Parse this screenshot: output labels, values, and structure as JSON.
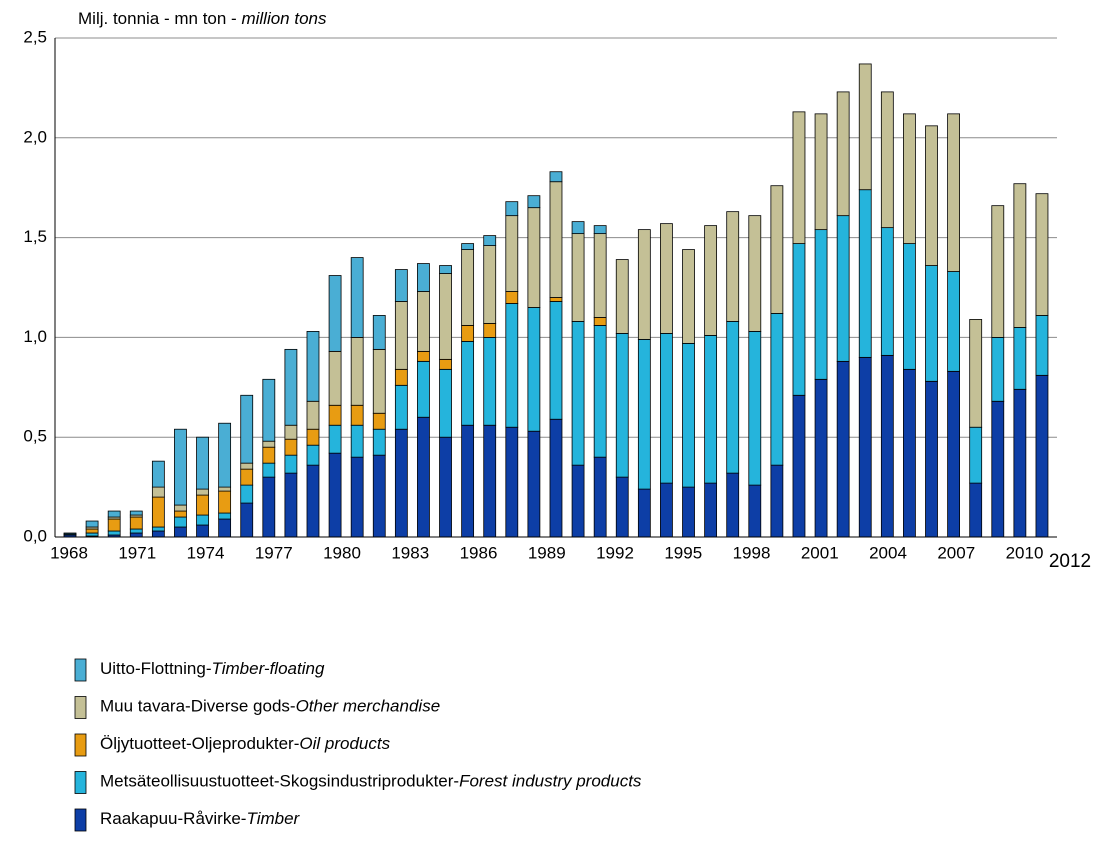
{
  "chart_data": {
    "type": "stacked_bar",
    "title": "Milj. tonnia - mn ton - ",
    "title_italic": "million tons",
    "categories": [
      "1968",
      null,
      null,
      "1971",
      null,
      null,
      "1974",
      null,
      null,
      "1977",
      null,
      null,
      "1980",
      null,
      null,
      "1983",
      null,
      null,
      "1986",
      null,
      null,
      "1989",
      null,
      null,
      "1992",
      null,
      null,
      "1995",
      null,
      null,
      "1998",
      null,
      null,
      "2001",
      null,
      null,
      "2004",
      null,
      null,
      "2007",
      null,
      null,
      "2010",
      null,
      "2012"
    ],
    "ylim": [
      0,
      2.5
    ],
    "yticks": [
      {
        "value": 0,
        "label": "0,0"
      },
      {
        "value": 0.5,
        "label": "0,5"
      },
      {
        "value": 1,
        "label": "1,0"
      },
      {
        "value": 1.5,
        "label": "1,5"
      },
      {
        "value": 2,
        "label": "2,0"
      },
      {
        "value": 2.5,
        "label": "2,5"
      }
    ],
    "grid": true,
    "series": [
      {
        "name": "Raakapuu-Råvirke-",
        "name_italic": "Timber",
        "color": "#0d3ea6",
        "values": [
          0.01,
          0.005,
          0.01,
          0.02,
          0.03,
          0.05,
          0.06,
          0.09,
          0.17,
          0.3,
          0.32,
          0.36,
          0.42,
          0.4,
          0.41,
          0.54,
          0.6,
          0.5,
          0.56,
          0.56,
          0.55,
          0.53,
          0.59,
          0.36,
          0.4,
          0.3,
          0.24,
          0.27,
          0.25,
          0.27,
          0.32,
          0.26,
          0.36,
          0.71,
          0.79,
          0.88,
          0.9,
          0.91,
          0.84,
          0.78,
          0.83,
          0.27,
          0.68,
          0.74,
          0.81
        ]
      },
      {
        "name": "Metsäteollisuustuotteet-Skogsindustriprodukter-",
        "name_italic": "Forest industry products",
        "color": "#25b4dc",
        "values": [
          0.005,
          0.015,
          0.02,
          0.02,
          0.02,
          0.05,
          0.05,
          0.03,
          0.09,
          0.07,
          0.09,
          0.1,
          0.14,
          0.16,
          0.13,
          0.22,
          0.28,
          0.34,
          0.42,
          0.44,
          0.62,
          0.62,
          0.59,
          0.72,
          0.66,
          0.72,
          0.75,
          0.75,
          0.72,
          0.74,
          0.76,
          0.77,
          0.76,
          0.76,
          0.75,
          0.73,
          0.84,
          0.64,
          0.63,
          0.58,
          0.5,
          0.28,
          0.32,
          0.31,
          0.3
        ]
      },
      {
        "name": "Öljytuotteet-Oljeprodukter-",
        "name_italic": "Oil products",
        "color": "#e89c12",
        "values": [
          0,
          0.02,
          0.06,
          0.06,
          0.15,
          0.03,
          0.1,
          0.11,
          0.08,
          0.08,
          0.08,
          0.08,
          0.1,
          0.1,
          0.08,
          0.08,
          0.05,
          0.05,
          0.08,
          0.07,
          0.06,
          0,
          0.02,
          0,
          0.04,
          0,
          0,
          0,
          0,
          0,
          0,
          0,
          0,
          0,
          0,
          0,
          0,
          0,
          0,
          0,
          0,
          0,
          0,
          0,
          0
        ]
      },
      {
        "name": "Muu tavara-Diverse gods-",
        "name_italic": "Other merchandise",
        "color": "#c4c096",
        "values": [
          0,
          0.01,
          0.01,
          0.01,
          0.05,
          0.03,
          0.03,
          0.02,
          0.03,
          0.03,
          0.07,
          0.14,
          0.27,
          0.34,
          0.32,
          0.34,
          0.3,
          0.43,
          0.38,
          0.39,
          0.38,
          0.5,
          0.58,
          0.44,
          0.42,
          0.37,
          0.55,
          0.55,
          0.47,
          0.55,
          0.55,
          0.58,
          0.64,
          0.66,
          0.58,
          0.62,
          0.63,
          0.68,
          0.65,
          0.7,
          0.79,
          0.54,
          0.66,
          0.72,
          0.61
        ]
      },
      {
        "name": "Uitto-Flottning-",
        "name_italic": "Timber-floating",
        "color": "#4aaed4",
        "values": [
          0.005,
          0.03,
          0.03,
          0.02,
          0.13,
          0.38,
          0.26,
          0.32,
          0.34,
          0.31,
          0.38,
          0.35,
          0.38,
          0.4,
          0.17,
          0.16,
          0.14,
          0.04,
          0.03,
          0.05,
          0.07,
          0.06,
          0.05,
          0.06,
          0.04,
          0,
          0,
          0,
          0,
          0,
          0,
          0,
          0,
          0,
          0,
          0,
          0,
          0,
          0,
          0,
          0,
          0,
          0,
          0,
          0
        ]
      }
    ]
  }
}
